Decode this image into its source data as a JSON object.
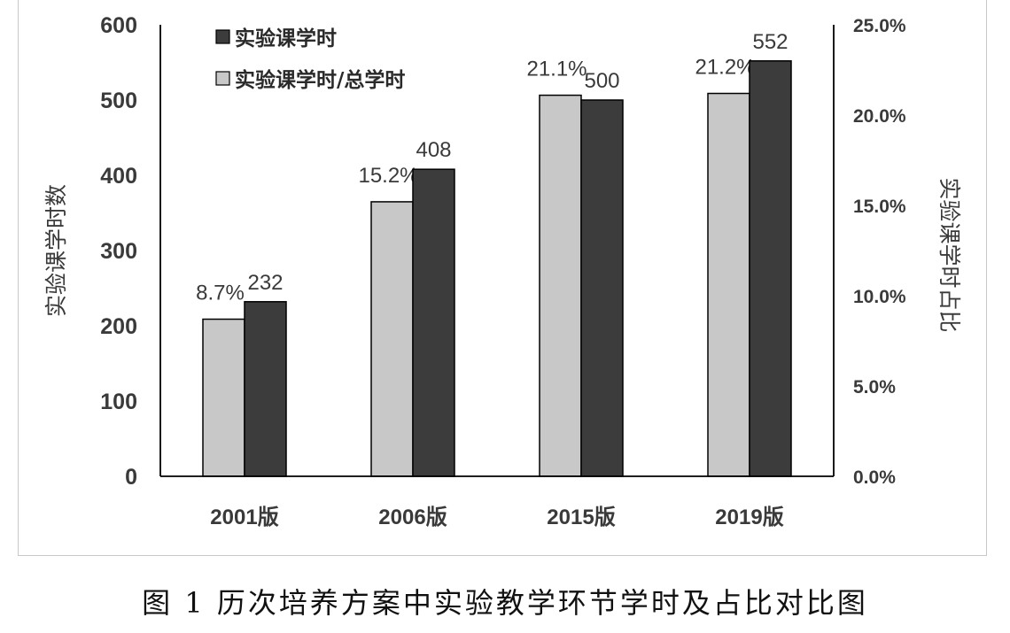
{
  "caption": "图 1  历次培养方案中实验教学环节学时及占比对比图",
  "chart_data": {
    "type": "bar",
    "categories": [
      "2001版",
      "2006版",
      "2015版",
      "2019版"
    ],
    "series": [
      {
        "name": "实验课学时/总学时",
        "axis": "right",
        "values": [
          8.7,
          15.2,
          21.1,
          21.2
        ],
        "labels": [
          "8.7%",
          "15.2%",
          "21.1%",
          "21.2%"
        ],
        "color": "#c8c8c8"
      },
      {
        "name": "实验课学时",
        "axis": "left",
        "values": [
          232,
          408,
          500,
          552
        ],
        "labels": [
          "232",
          "408",
          "500",
          "552"
        ],
        "color": "#3c3c3c"
      }
    ],
    "ylabel": "实验课学时数",
    "y2label": "实验课学时占比",
    "ylim": [
      0,
      600
    ],
    "y2lim": [
      0,
      25
    ],
    "yticks": [
      "0",
      "100",
      "200",
      "300",
      "400",
      "500",
      "600"
    ],
    "y2ticks": [
      "0.0%",
      "5.0%",
      "10.0%",
      "15.0%",
      "20.0%",
      "25.0%"
    ],
    "legend_position": "top-left",
    "grid": false
  }
}
